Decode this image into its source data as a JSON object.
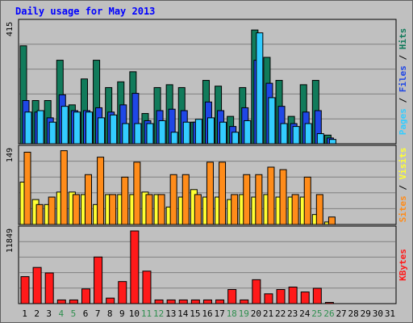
{
  "title": "Daily usage for May 2013",
  "colors": {
    "frame_bg": "#c0c0c0",
    "grid": "#808080",
    "hits": "#117b5b",
    "files": "#1f47e6",
    "pages": "#33ccff",
    "visits": "#ffff33",
    "sites": "#ff8c1a",
    "kbytes": "#ff1a1a",
    "weekend_label": "#2f8f4f",
    "weekday_label": "#000000"
  },
  "chart_data": [
    {
      "type": "bar",
      "panel": "top",
      "ylabel_parts": [
        "Pages",
        "Files",
        "Hits"
      ],
      "ymax_label": "415",
      "ylim": [
        0,
        415
      ],
      "categories": [
        "1",
        "2",
        "3",
        "4",
        "5",
        "6",
        "7",
        "8",
        "9",
        "10",
        "11",
        "12",
        "13",
        "14",
        "15",
        "16",
        "17",
        "18",
        "19",
        "20",
        "21",
        "22",
        "23",
        "24",
        "25",
        "26",
        "27",
        "28",
        "29",
        "30",
        "31"
      ],
      "series": [
        {
          "name": "Hits",
          "values": [
            340,
            150,
            150,
            290,
            135,
            225,
            290,
            195,
            215,
            250,
            105,
            195,
            205,
            195,
            75,
            220,
            200,
            95,
            195,
            395,
            300,
            220,
            95,
            205,
            220,
            30,
            0,
            0,
            0,
            0,
            0
          ]
        },
        {
          "name": "Files",
          "values": [
            150,
            110,
            90,
            170,
            115,
            115,
            125,
            110,
            135,
            175,
            80,
            115,
            120,
            115,
            75,
            145,
            115,
            60,
            125,
            290,
            210,
            130,
            70,
            110,
            115,
            20,
            0,
            0,
            0,
            0,
            0
          ]
        },
        {
          "name": "Pages",
          "values": [
            110,
            115,
            75,
            130,
            110,
            110,
            90,
            100,
            70,
            70,
            70,
            80,
            40,
            75,
            85,
            90,
            75,
            40,
            80,
            385,
            160,
            70,
            60,
            70,
            35,
            15,
            0,
            0,
            0,
            0,
            0
          ]
        }
      ],
      "weekend_days": [
        4,
        5,
        11,
        12,
        18,
        19,
        25,
        26
      ],
      "grid": true
    },
    {
      "type": "bar",
      "panel": "middle",
      "ylabel_parts": [
        "Sites",
        "Visits"
      ],
      "ymax_label": "149",
      "ylim": [
        0,
        149
      ],
      "categories": [
        "1",
        "2",
        "3",
        "4",
        "5",
        "6",
        "7",
        "8",
        "9",
        "10",
        "11",
        "12",
        "13",
        "14",
        "15",
        "16",
        "17",
        "18",
        "19",
        "20",
        "21",
        "22",
        "23",
        "24",
        "25",
        "26",
        "27",
        "28",
        "29",
        "30",
        "31"
      ],
      "series": [
        {
          "name": "Visits",
          "values": [
            85,
            50,
            40,
            65,
            65,
            60,
            40,
            60,
            60,
            60,
            65,
            60,
            35,
            55,
            70,
            55,
            55,
            50,
            60,
            55,
            60,
            55,
            55,
            55,
            20,
            5,
            0,
            0,
            0,
            0,
            0
          ]
        },
        {
          "name": "Sites",
          "values": [
            145,
            40,
            55,
            148,
            60,
            100,
            135,
            60,
            95,
            125,
            60,
            60,
            100,
            100,
            60,
            125,
            125,
            60,
            100,
            100,
            115,
            110,
            60,
            95,
            60,
            15,
            0,
            0,
            0,
            0,
            0
          ]
        }
      ],
      "grid": true
    },
    {
      "type": "bar",
      "panel": "bottom",
      "ylabel": "KBytes",
      "ymax_label": "11849",
      "ylim": [
        0,
        11849
      ],
      "categories": [
        "1",
        "2",
        "3",
        "4",
        "5",
        "6",
        "7",
        "8",
        "9",
        "10",
        "11",
        "12",
        "13",
        "14",
        "15",
        "16",
        "17",
        "18",
        "19",
        "20",
        "21",
        "22",
        "23",
        "24",
        "25",
        "26",
        "27",
        "28",
        "29",
        "30",
        "31"
      ],
      "values": [
        4400,
        5900,
        5000,
        600,
        600,
        2400,
        7600,
        900,
        3600,
        11849,
        5300,
        600,
        600,
        600,
        600,
        600,
        600,
        2300,
        600,
        3900,
        1600,
        2300,
        2700,
        1900,
        2500,
        200,
        0,
        0,
        0,
        0,
        0
      ],
      "grid": true
    }
  ]
}
